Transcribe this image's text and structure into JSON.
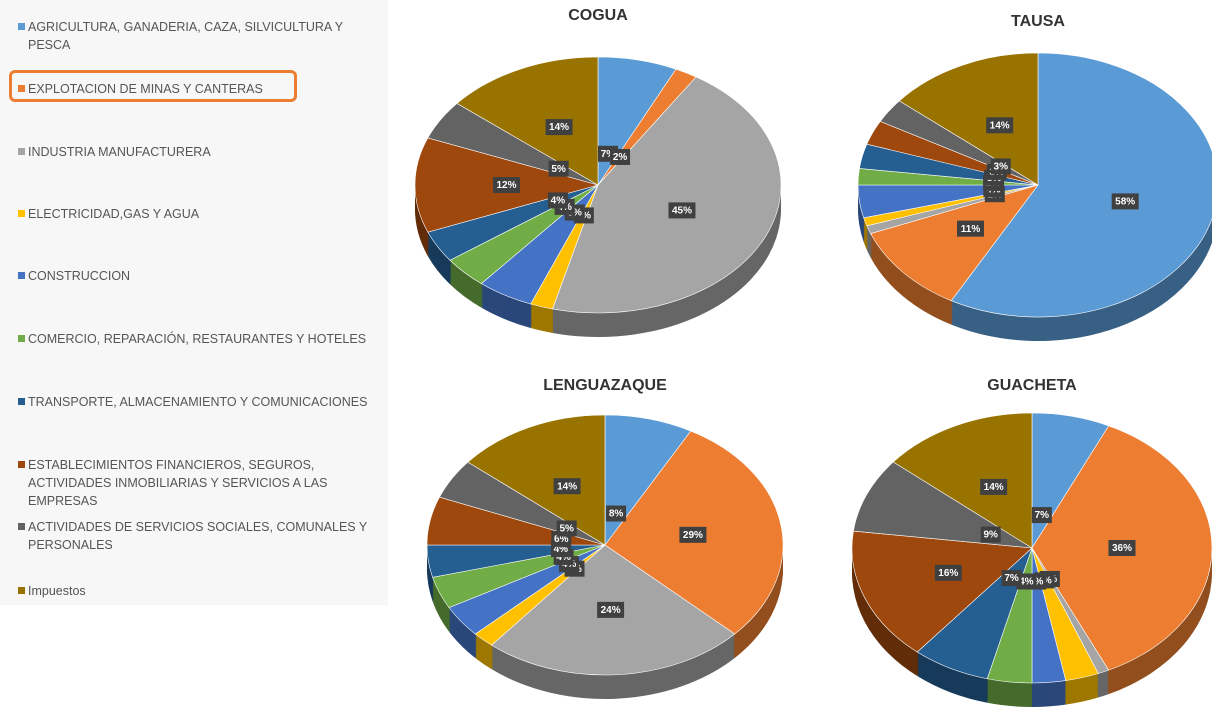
{
  "legend": {
    "items": [
      {
        "name": "AGRICULTURA, GANADERIA, CAZA, SILVICULTURA Y PESCA",
        "color": "#5b9bd5"
      },
      {
        "name": "EXPLOTACION DE MINAS Y CANTERAS",
        "color": "#ed7d31"
      },
      {
        "name": "INDUSTRIA MANUFACTURERA",
        "color": "#a5a5a5"
      },
      {
        "name": "ELECTRICIDAD,GAS Y AGUA",
        "color": "#ffc000"
      },
      {
        "name": "CONSTRUCCION",
        "color": "#4472c4"
      },
      {
        "name": "COMERCIO, REPARACIÓN, RESTAURANTES Y HOTELES",
        "color": "#70ad47"
      },
      {
        "name": "TRANSPORTE, ALMACENAMIENTO Y COMUNICACIONES",
        "color": "#255e91"
      },
      {
        "name": "ESTABLECIMIENTOS FINANCIEROS, SEGUROS, ACTIVIDADES INMOBILIARIAS Y SERVICIOS A LAS EMPRESAS",
        "color": "#9e480e"
      },
      {
        "name": "ACTIVIDADES DE SERVICIOS SOCIALES, COMUNALES Y PERSONALES",
        "color": "#636363"
      },
      {
        "name": "Impuestos",
        "color": "#997300"
      }
    ]
  },
  "chart_data": [
    {
      "type": "pie",
      "title": "COGUA",
      "values": [
        7,
        2,
        45,
        2,
        5,
        4,
        4,
        12,
        5,
        14
      ],
      "value_labels": [
        "7%",
        "2%",
        "45%",
        "2%",
        "5%",
        "4%",
        "4%",
        "12%",
        "5%",
        "14%"
      ]
    },
    {
      "type": "pie",
      "title": "TAUSA",
      "values": [
        58,
        11,
        1,
        1,
        4,
        2,
        3,
        3,
        3,
        14
      ],
      "value_labels": [
        "58%",
        "11%",
        null,
        "1%",
        "4%",
        "2%",
        "3%",
        "3%",
        "3%",
        "14%"
      ]
    },
    {
      "type": "pie",
      "title": "LENGUAZAQUE",
      "values": [
        8,
        29,
        24,
        2,
        4,
        4,
        4,
        6,
        5,
        14
      ],
      "value_labels": [
        "8%",
        "29%",
        "24%",
        "2%",
        "4%",
        "4%",
        "4%",
        "6%",
        "5%",
        "14%"
      ]
    },
    {
      "type": "pie",
      "title": "GUACHETA",
      "values": [
        7,
        36,
        1,
        3,
        3,
        4,
        7,
        16,
        9,
        14
      ],
      "value_labels": [
        "7%",
        "36%",
        "1%",
        "3%",
        "3%",
        "4%",
        "7%",
        "16%",
        "9%",
        "14%"
      ]
    }
  ]
}
